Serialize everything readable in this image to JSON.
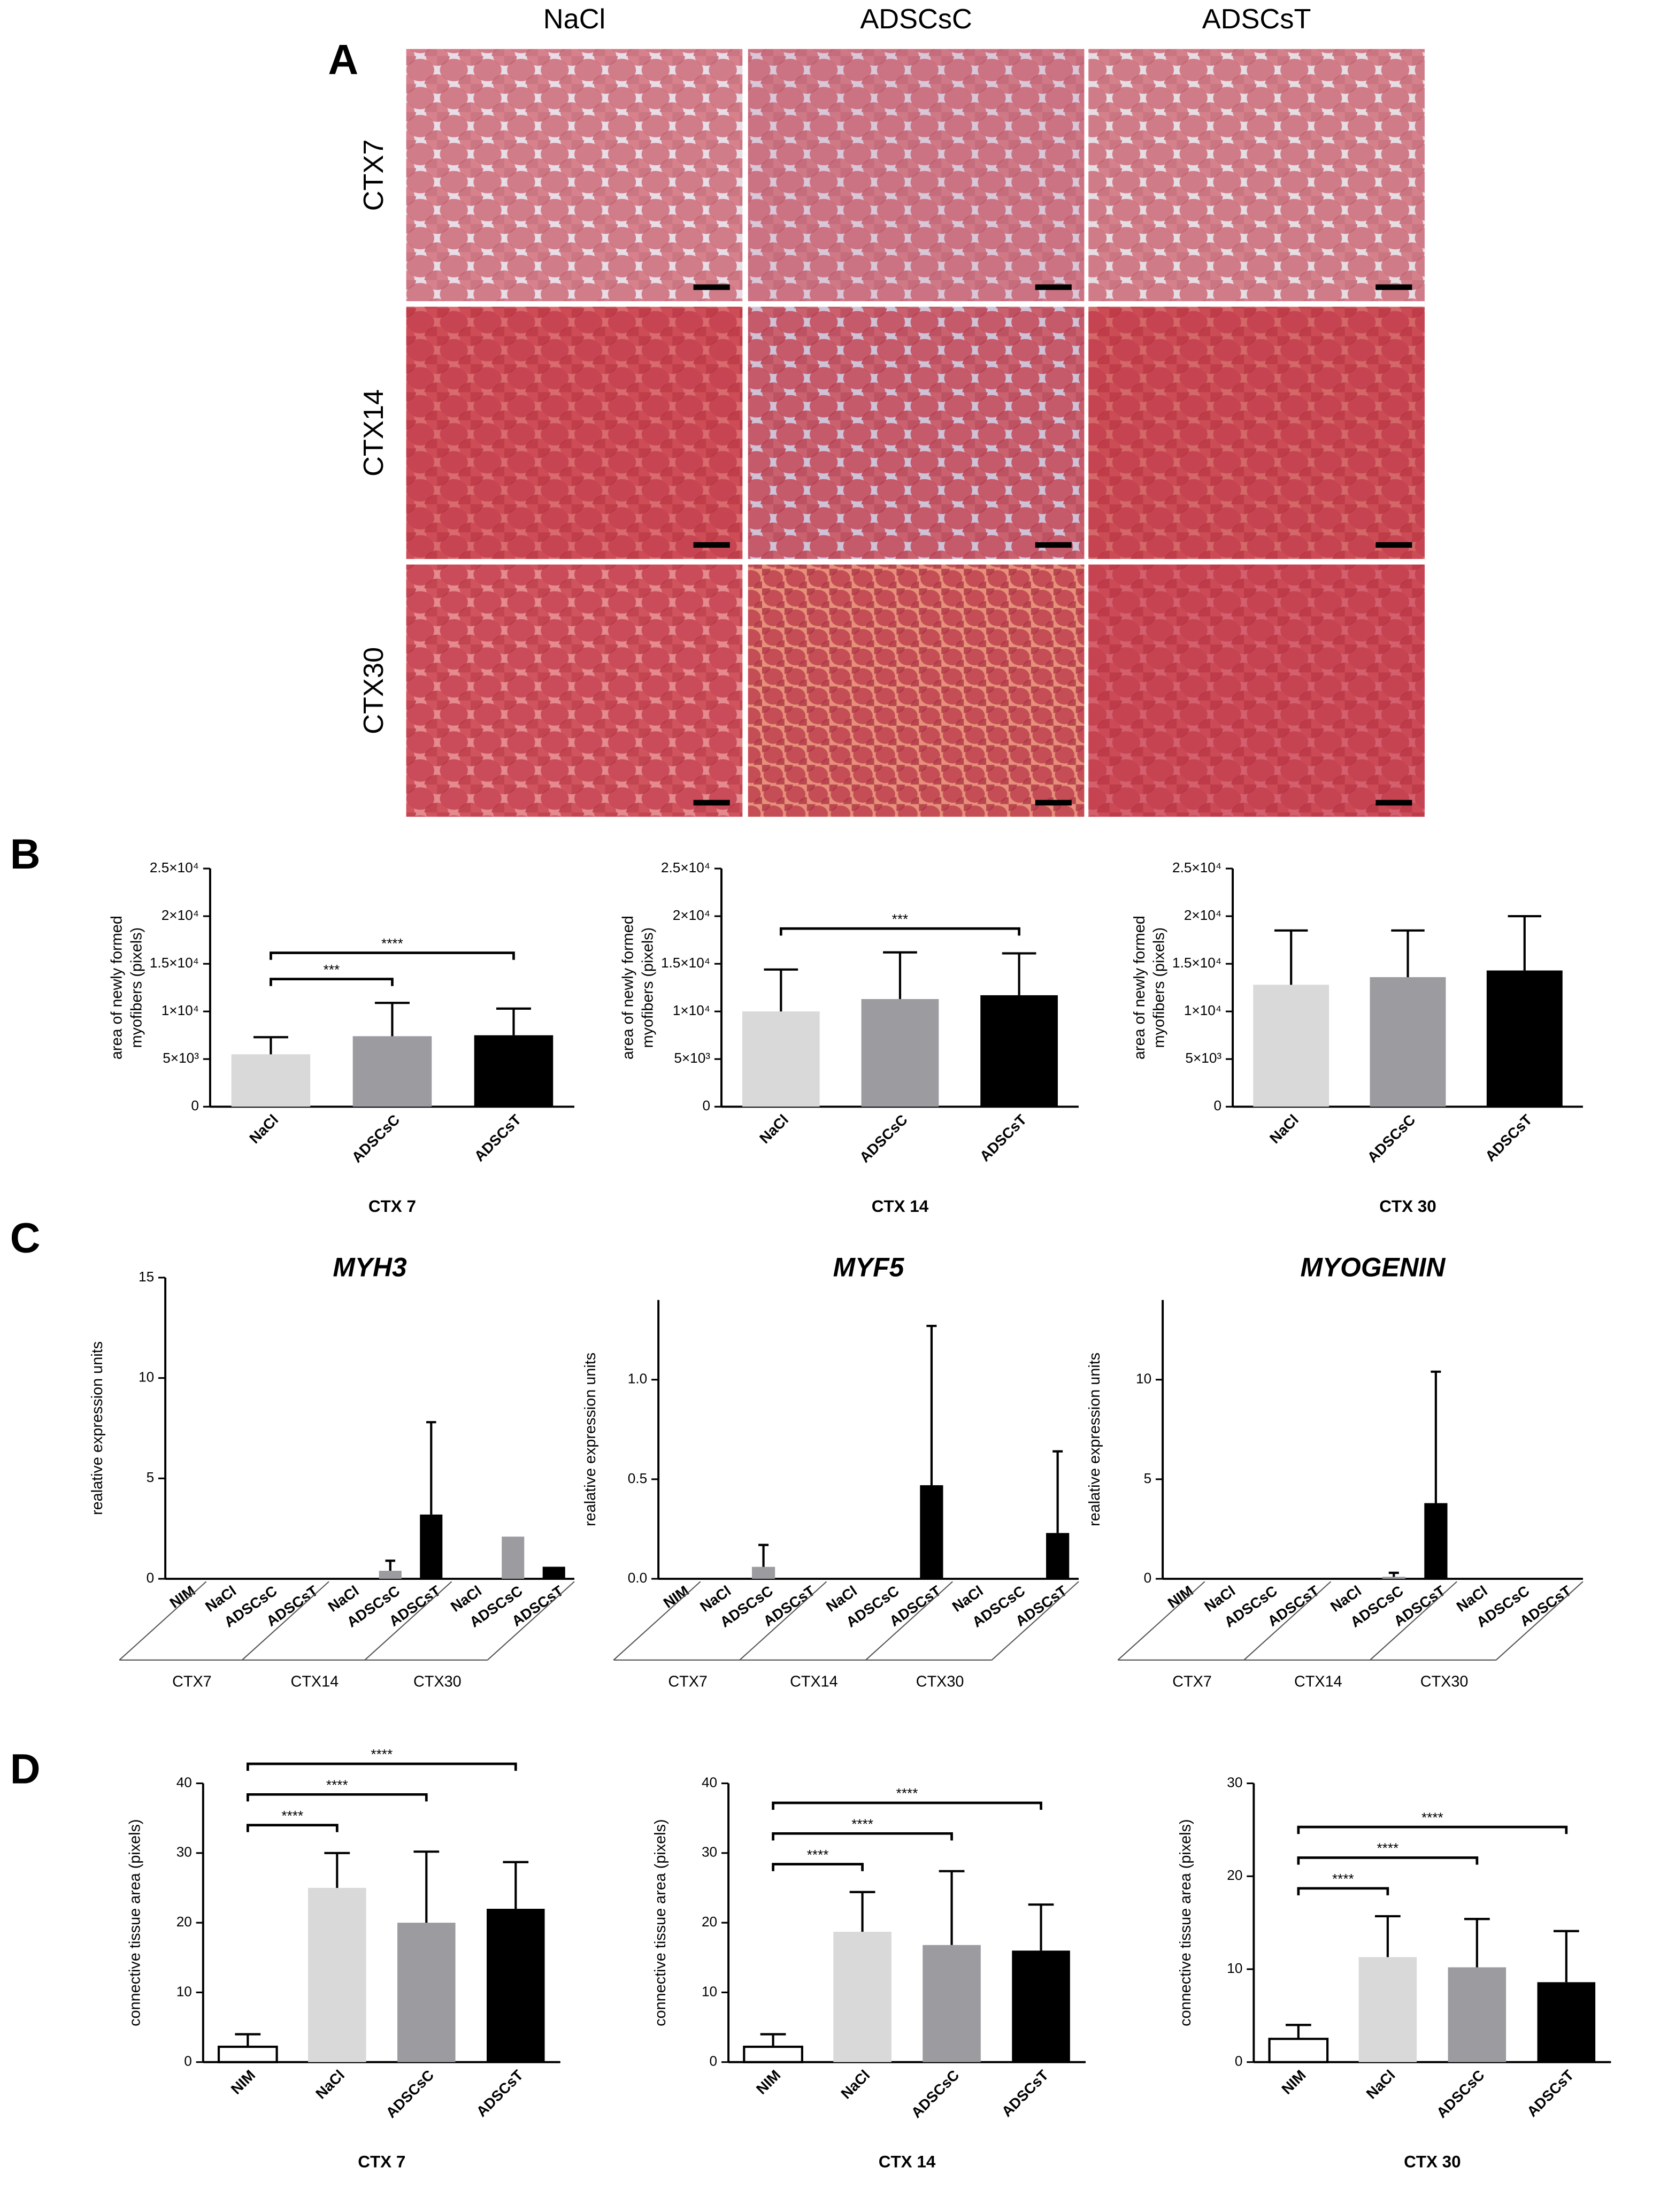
{
  "figure": {
    "panels": [
      "A",
      "B",
      "C",
      "D"
    ],
    "columns": [
      "NaCl",
      "ADSCsC",
      "ADSCsT"
    ],
    "rows": [
      "CTX7",
      "CTX14",
      "CTX30"
    ]
  },
  "chart_data": [
    {
      "type": "bar",
      "y_label": [
        "area of newly formed",
        "myofibers (pixels)"
      ],
      "x_label": "CTX 7",
      "categories": [
        "NaCl",
        "ADSCsC",
        "ADSCsT"
      ],
      "values": [
        5500,
        7400,
        7500
      ],
      "errors": [
        1800,
        3500,
        2800
      ],
      "colors": [
        "#d9d9d9",
        "#9b9ba0",
        "#000000"
      ],
      "ylim": [
        0,
        25000
      ],
      "yticks": [
        0,
        {
          "value": 5000,
          "label": "5×10³"
        },
        {
          "value": 10000,
          "label": "1×10⁴"
        },
        {
          "value": 15000,
          "label": "1.5×10⁴"
        },
        {
          "value": 20000,
          "label": "2×10⁴"
        },
        {
          "value": 25000,
          "label": "2.5×10⁴"
        }
      ],
      "significance": [
        {
          "groups": [
            "NaCl",
            "ADSCsC"
          ],
          "label": "***"
        },
        {
          "groups": [
            "NaCl",
            "ADSCsT"
          ],
          "label": "****"
        }
      ]
    },
    {
      "type": "bar",
      "y_label": [
        "area of newly formed",
        "myofibers (pixels)"
      ],
      "x_label": "CTX 14",
      "categories": [
        "NaCl",
        "ADSCsC",
        "ADSCsT"
      ],
      "values": [
        10000,
        11300,
        11700
      ],
      "errors": [
        4400,
        4900,
        4400
      ],
      "colors": [
        "#d9d9d9",
        "#9b9ba0",
        "#000000"
      ],
      "ylim": [
        0,
        25000
      ],
      "yticks": [
        0,
        {
          "value": 5000,
          "label": "5×10³"
        },
        {
          "value": 10000,
          "label": "1×10⁴"
        },
        {
          "value": 15000,
          "label": "1.5×10⁴"
        },
        {
          "value": 20000,
          "label": "2×10⁴"
        },
        {
          "value": 25000,
          "label": "2.5×10⁴"
        }
      ],
      "significance": [
        {
          "groups": [
            "NaCl",
            "ADSCsT"
          ],
          "label": "***"
        }
      ]
    },
    {
      "type": "bar",
      "y_label": [
        "area of newly formed",
        "myofibers (pixels)"
      ],
      "x_label": "CTX 30",
      "categories": [
        "NaCl",
        "ADSCsC",
        "ADSCsT"
      ],
      "values": [
        12800,
        13600,
        14300
      ],
      "errors": [
        5700,
        4900,
        5700
      ],
      "colors": [
        "#d9d9d9",
        "#9b9ba0",
        "#000000"
      ],
      "ylim": [
        0,
        25000
      ],
      "yticks": [
        0,
        {
          "value": 5000,
          "label": "5×10³"
        },
        {
          "value": 10000,
          "label": "1×10⁴"
        },
        {
          "value": 15000,
          "label": "1.5×10⁴"
        },
        {
          "value": 20000,
          "label": "2×10⁴"
        },
        {
          "value": 25000,
          "label": "2.5×10⁴"
        }
      ]
    },
    {
      "type": "bar",
      "title": "MYH3",
      "y_label": [
        "realative expression units"
      ],
      "groups": [
        "CTX7",
        "CTX14",
        "CTX30"
      ],
      "categories": [
        "NIM",
        "NaCl",
        "ADSCsC",
        "ADSCsT",
        "NaCl",
        "ADSCsC",
        "ADSCsT",
        "NaCl",
        "ADSCsC",
        "ADSCsT"
      ],
      "values": [
        0,
        0,
        0,
        0,
        0,
        0.4,
        3.2,
        0,
        2.1,
        0.6
      ],
      "errors": [
        null,
        null,
        null,
        null,
        null,
        0.5,
        4.6,
        null,
        null,
        null
      ],
      "colors": [
        "#ffffff",
        "#d9d9d9",
        "#9b9ba0",
        "#000000",
        "#d9d9d9",
        "#9b9ba0",
        "#000000",
        "#d9d9d9",
        "#9b9ba0",
        "#000000"
      ],
      "ylim": [
        0,
        15
      ],
      "yticks": [
        0,
        5,
        10,
        15
      ]
    },
    {
      "type": "bar",
      "title": "MYF5",
      "y_label": [
        "realative expression units"
      ],
      "groups": [
        "CTX7",
        "CTX14",
        "CTX30"
      ],
      "categories": [
        "NIM",
        "NaCl",
        "ADSCsC",
        "ADSCsT",
        "NaCl",
        "ADSCsC",
        "ADSCsT",
        "NaCl",
        "ADSCsC",
        "ADSCsT"
      ],
      "values": [
        0,
        0,
        0.06,
        0,
        0,
        0,
        0.47,
        0,
        0,
        0.23
      ],
      "errors": [
        null,
        null,
        0.11,
        null,
        null,
        null,
        0.8,
        null,
        null,
        0.41
      ],
      "colors": [
        "#ffffff",
        "#d9d9d9",
        "#9b9ba0",
        "#000000",
        "#d9d9d9",
        "#9b9ba0",
        "#000000",
        "#d9d9d9",
        "#9b9ba0",
        "#000000"
      ],
      "ylim": [
        0,
        1.4
      ],
      "yticks": [
        {
          "value": 0,
          "label": "0.0"
        },
        0.5,
        {
          "value": 1,
          "label": "1.0"
        }
      ]
    },
    {
      "type": "bar",
      "title": "MYOGENIN",
      "y_label": [
        "realative expression units"
      ],
      "groups": [
        "CTX7",
        "CTX14",
        "CTX30"
      ],
      "categories": [
        "NIM",
        "NaCl",
        "ADSCsC",
        "ADSCsT",
        "NaCl",
        "ADSCsC",
        "ADSCsT",
        "NaCl",
        "ADSCsC",
        "ADSCsT"
      ],
      "values": [
        0,
        0,
        0,
        0,
        0,
        0.1,
        3.8,
        0,
        0,
        0
      ],
      "errors": [
        null,
        null,
        null,
        null,
        null,
        0.2,
        6.6,
        null,
        null,
        null
      ],
      "colors": [
        "#ffffff",
        "#d9d9d9",
        "#9b9ba0",
        "#000000",
        "#d9d9d9",
        "#9b9ba0",
        "#000000",
        "#d9d9d9",
        "#9b9ba0",
        "#000000"
      ],
      "ylim": [
        0,
        14
      ],
      "yticks": [
        0,
        5,
        10
      ]
    },
    {
      "type": "bar",
      "y_label": [
        "connective tissue area (pixels)"
      ],
      "x_label": "CTX 7",
      "categories": [
        "NIM",
        "NaCl",
        "ADSCsC",
        "ADSCsT"
      ],
      "values": [
        2.2,
        25,
        20,
        22
      ],
      "errors": [
        1.8,
        5,
        10.2,
        6.7
      ],
      "colors": [
        "#ffffff",
        "#d9d9d9",
        "#9b9ba0",
        "#000000"
      ],
      "ylim": [
        0,
        40
      ],
      "yticks": [
        0,
        10,
        20,
        30,
        40
      ],
      "significance": [
        {
          "groups": [
            "NIM",
            "NaCl"
          ],
          "label": "****"
        },
        {
          "groups": [
            "NIM",
            "ADSCsC"
          ],
          "label": "****"
        },
        {
          "groups": [
            "NIM",
            "ADSCsT"
          ],
          "label": "****"
        }
      ]
    },
    {
      "type": "bar",
      "y_label": [
        "connective tissue area (pixels)"
      ],
      "x_label": "CTX 14",
      "categories": [
        "NIM",
        "NaCl",
        "ADSCsC",
        "ADSCsT"
      ],
      "values": [
        2.2,
        18.7,
        16.8,
        16
      ],
      "errors": [
        1.8,
        5.7,
        10.6,
        6.6
      ],
      "colors": [
        "#ffffff",
        "#d9d9d9",
        "#9b9ba0",
        "#000000"
      ],
      "ylim": [
        0,
        40
      ],
      "yticks": [
        0,
        10,
        20,
        30,
        40
      ],
      "significance": [
        {
          "groups": [
            "NIM",
            "NaCl"
          ],
          "label": "****"
        },
        {
          "groups": [
            "NIM",
            "ADSCsC"
          ],
          "label": "****"
        },
        {
          "groups": [
            "NIM",
            "ADSCsT"
          ],
          "label": "****"
        }
      ]
    },
    {
      "type": "bar",
      "y_label": [
        "connective tissue area (pixels)"
      ],
      "x_label": "CTX 30",
      "categories": [
        "NIM",
        "NaCl",
        "ADSCsC",
        "ADSCsT"
      ],
      "values": [
        2.5,
        11.3,
        10.2,
        8.6
      ],
      "errors": [
        1.5,
        4.4,
        5.2,
        5.5
      ],
      "colors": [
        "#ffffff",
        "#d9d9d9",
        "#9b9ba0",
        "#000000"
      ],
      "ylim": [
        0,
        30
      ],
      "yticks": [
        0,
        10,
        20,
        30
      ],
      "significance": [
        {
          "groups": [
            "NIM",
            "NaCl"
          ],
          "label": "****"
        },
        {
          "groups": [
            "NIM",
            "ADSCsC"
          ],
          "label": "****"
        },
        {
          "groups": [
            "NIM",
            "ADSCsT"
          ],
          "label": "****"
        }
      ]
    }
  ]
}
